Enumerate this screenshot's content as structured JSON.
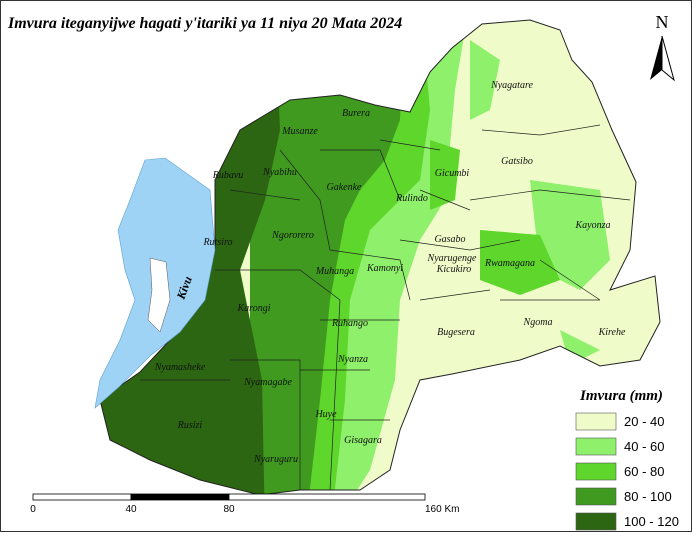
{
  "title": "Imvura iteganyijwe hagati y'itariki ya 11 niya 20 Mata 2024",
  "north": "N",
  "lake": "Kivu",
  "districts": [
    "Nyagatare",
    "Gatsibo",
    "Kayonza",
    "Kirehe",
    "Ngoma",
    "Bugesera",
    "Rwamagana",
    "Kicukiro",
    "Nyarugenge",
    "Gasabo",
    "Gicumbi",
    "Rulindo",
    "Burera",
    "Musanze",
    "Gakenke",
    "Nyabihu",
    "Rubavu",
    "Rutsiro",
    "Ngororero",
    "Muhanga",
    "Kamonyi",
    "Karongi",
    "Ruhango",
    "Nyanza",
    "Nyamasheke",
    "Nyamagabe",
    "Huye",
    "Gisagara",
    "Rusizi",
    "Nyaruguru"
  ],
  "legend": {
    "title": "Imvura (mm)",
    "items": [
      {
        "label": "20 - 40",
        "color": "#effcc9"
      },
      {
        "label": "40 - 60",
        "color": "#8ef06b"
      },
      {
        "label": "60 - 80",
        "color": "#5ed62b"
      },
      {
        "label": "80 - 100",
        "color": "#3f9a1f"
      },
      {
        "label": "100 - 120",
        "color": "#2c6612"
      }
    ]
  },
  "scale": {
    "labels": [
      "0",
      "40",
      "80",
      "160 Km"
    ]
  }
}
